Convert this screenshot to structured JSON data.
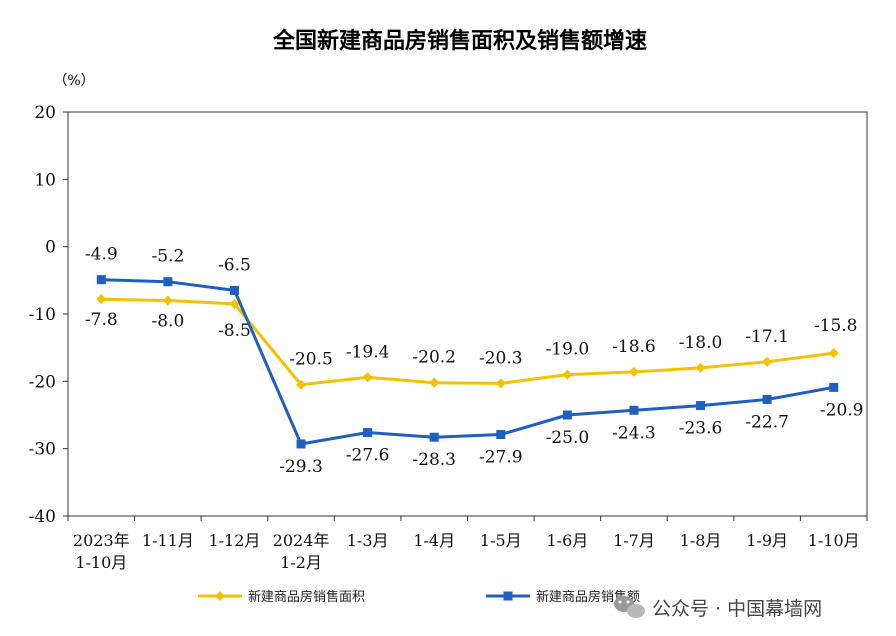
{
  "chart_data": {
    "type": "line",
    "title": "全国新建商品房销售面积及销售额增速",
    "ylabel": "（%）",
    "xlabel": "",
    "ylim": [
      -40,
      20
    ],
    "yticks": [
      20,
      10,
      0,
      -10,
      -20,
      -30,
      -40
    ],
    "grid": false,
    "legend_position": "bottom",
    "categories": [
      [
        "2023年",
        "1-10月"
      ],
      [
        "1-11月"
      ],
      [
        "1-12月"
      ],
      [
        "2024年",
        "1-2月"
      ],
      [
        "1-3月"
      ],
      [
        "1-4月"
      ],
      [
        "1-5月"
      ],
      [
        "1-6月"
      ],
      [
        "1-7月"
      ],
      [
        "1-8月"
      ],
      [
        "1-9月"
      ],
      [
        "1-10月"
      ]
    ],
    "series": [
      {
        "name": "新建商品房销售面积",
        "color": "#f5c000",
        "marker": "diamond",
        "values": [
          -7.8,
          -8.0,
          -8.5,
          -20.5,
          -19.4,
          -20.2,
          -20.3,
          -19.0,
          -18.6,
          -18.0,
          -17.1,
          -15.8
        ],
        "labels": [
          "-7.8",
          "-8.0",
          "-8.5",
          "-20.5",
          "-19.4",
          "-20.2",
          "-20.3",
          "-19.0",
          "-18.6",
          "-18.0",
          "-17.1",
          "-15.8"
        ]
      },
      {
        "name": "新建商品房销售额",
        "color": "#1f5fbf",
        "marker": "square",
        "values": [
          -4.9,
          -5.2,
          -6.5,
          -29.3,
          -27.6,
          -28.3,
          -27.9,
          -25.0,
          -24.3,
          -23.6,
          -22.7,
          -20.9
        ],
        "labels": [
          "-4.9",
          "-5.2",
          "-6.5",
          "-29.3",
          "-27.6",
          "-28.3",
          "-27.9",
          "-25.0",
          "-24.3",
          "-23.6",
          "-22.7",
          "-20.9"
        ]
      }
    ]
  },
  "watermark": {
    "icon": "wechat-icon",
    "text": "公众号 · 中国幕墙网"
  }
}
